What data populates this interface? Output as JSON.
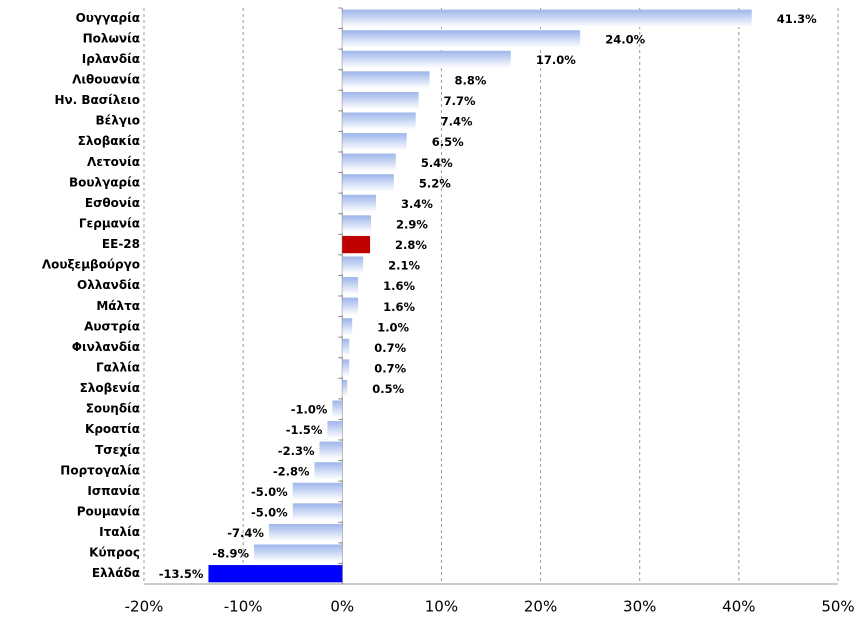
{
  "chart_data": {
    "type": "bar",
    "orientation": "horizontal",
    "categories": [
      "Ουγγαρία",
      "Πολωνία",
      "Ιρλανδία",
      "Λιθουανία",
      "Ην. Βασίλειο",
      "Βέλγιο",
      "Σλοβακία",
      "Λετονία",
      "Βουλγαρία",
      "Εσθονία",
      "Γερμανία",
      "ΕΕ-28",
      "Λουξεμβούργο",
      "Ολλανδία",
      "Μάλτα",
      "Αυστρία",
      "Φινλανδία",
      "Γαλλία",
      "Σλοβενία",
      "Σουηδία",
      "Κροατία",
      "Τσεχία",
      "Πορτογαλία",
      "Ισπανία",
      "Ρουμανία",
      "Ιταλία",
      "Κύπρος",
      "Ελλάδα"
    ],
    "values": [
      41.3,
      24.0,
      17.0,
      8.8,
      7.7,
      7.4,
      6.5,
      5.4,
      5.2,
      3.4,
      2.9,
      2.8,
      2.1,
      1.6,
      1.6,
      1.0,
      0.7,
      0.7,
      0.5,
      -1.0,
      -1.5,
      -2.3,
      -2.8,
      -5.0,
      -5.0,
      -7.4,
      -8.9,
      -13.5
    ],
    "value_labels": [
      "41.3%",
      "24.0%",
      "17.0%",
      "8.8%",
      "7.7%",
      "7.4%",
      "6.5%",
      "5.4%",
      "5.2%",
      "3.4%",
      "2.9%",
      "2.8%",
      "2.1%",
      "1.6%",
      "1.6%",
      "1.0%",
      "0.7%",
      "0.7%",
      "0.5%",
      "-1.0%",
      "-1.5%",
      "-2.3%",
      "-2.8%",
      "-5.0%",
      "-5.0%",
      "-7.4%",
      "-8.9%",
      "-13.5%"
    ],
    "color": "#9db5ea",
    "highlight_colors": {
      "ΕΕ-28": "#c00000",
      "Ελλάδα": "#0000ff"
    },
    "xlim": [
      -20,
      50
    ],
    "xticks": [
      {
        "value": -20,
        "label": "-20%"
      },
      {
        "value": -10,
        "label": "-10%"
      },
      {
        "value": 0,
        "label": "0%"
      },
      {
        "value": 10,
        "label": "10%"
      },
      {
        "value": 20,
        "label": "20%"
      },
      {
        "value": 30,
        "label": "30%"
      },
      {
        "value": 40,
        "label": "40%"
      },
      {
        "value": 50,
        "label": "50%"
      }
    ],
    "grid": true
  }
}
